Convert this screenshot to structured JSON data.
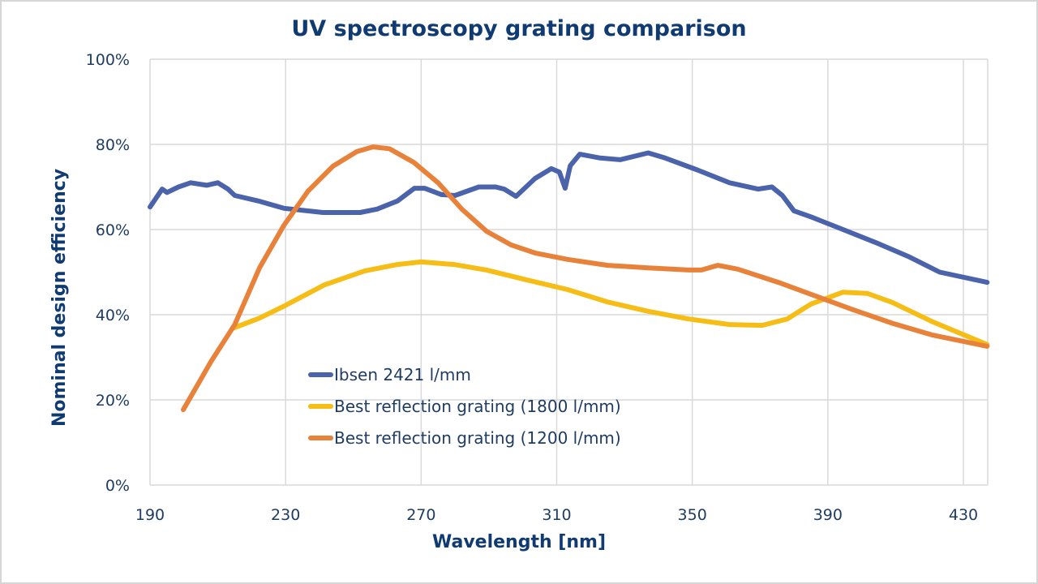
{
  "chart_data": {
    "type": "line",
    "title": "UV spectroscopy grating comparison",
    "xlabel": "Wavelength [nm]",
    "ylabel": "Nominal design efficiency",
    "xlim": [
      190,
      437
    ],
    "ylim": [
      0,
      100
    ],
    "x_ticks": [
      190,
      230,
      270,
      310,
      350,
      390,
      430
    ],
    "x_tick_labels": [
      "190",
      "230",
      "270",
      "310",
      "350",
      "390",
      "430"
    ],
    "y_ticks": [
      0,
      20,
      40,
      60,
      80,
      100
    ],
    "y_tick_labels": [
      "0%",
      "20%",
      "40%",
      "60%",
      "80%",
      "100%"
    ],
    "grid": true,
    "legend_position": "center-left inside plot",
    "series": [
      {
        "name": "Ibsen 2421 l/mm",
        "color": "#4a63ab",
        "points": [
          [
            190,
            65.3
          ],
          [
            193.6,
            69.5
          ],
          [
            195,
            68.7
          ],
          [
            198.4,
            70
          ],
          [
            202,
            71
          ],
          [
            206.7,
            70.4
          ],
          [
            210,
            71
          ],
          [
            213,
            69.5
          ],
          [
            215,
            68
          ],
          [
            222,
            66.7
          ],
          [
            229.5,
            65
          ],
          [
            241,
            64
          ],
          [
            252,
            64
          ],
          [
            257,
            64.8
          ],
          [
            263,
            66.7
          ],
          [
            268,
            69.7
          ],
          [
            271,
            69.7
          ],
          [
            276,
            68.2
          ],
          [
            280,
            68
          ],
          [
            287,
            70
          ],
          [
            292,
            70
          ],
          [
            294.5,
            69.5
          ],
          [
            298,
            67.8
          ],
          [
            303.6,
            72
          ],
          [
            308.4,
            74.3
          ],
          [
            310.8,
            73.5
          ],
          [
            312.5,
            69.7
          ],
          [
            314,
            75
          ],
          [
            316.8,
            77.7
          ],
          [
            322.8,
            76.8
          ],
          [
            328.7,
            76.4
          ],
          [
            337,
            78
          ],
          [
            342,
            76.8
          ],
          [
            351.5,
            74
          ],
          [
            361,
            71
          ],
          [
            369.4,
            69.5
          ],
          [
            373.5,
            70
          ],
          [
            376.6,
            68
          ],
          [
            380,
            64.4
          ],
          [
            385,
            63
          ],
          [
            394.5,
            60
          ],
          [
            404,
            57
          ],
          [
            413.7,
            53.7
          ],
          [
            423,
            50
          ],
          [
            437,
            47.6
          ]
        ]
      },
      {
        "name": "Best reflection grating (1800 l/mm)",
        "color": "#f6bd16",
        "points": [
          [
            214.4,
            36.8
          ],
          [
            222.3,
            39.2
          ],
          [
            229.5,
            42
          ],
          [
            241.4,
            47
          ],
          [
            253.4,
            50.3
          ],
          [
            263,
            51.8
          ],
          [
            270,
            52.4
          ],
          [
            279.7,
            51.8
          ],
          [
            289.3,
            50.5
          ],
          [
            301,
            48.2
          ],
          [
            313.2,
            45.9
          ],
          [
            325,
            43
          ],
          [
            337,
            40.8
          ],
          [
            349,
            39
          ],
          [
            361,
            37.7
          ],
          [
            370.6,
            37.5
          ],
          [
            378,
            39
          ],
          [
            385,
            42.5
          ],
          [
            394.5,
            45.3
          ],
          [
            401.7,
            45
          ],
          [
            409,
            42.9
          ],
          [
            421,
            38.3
          ],
          [
            437,
            33
          ]
        ]
      },
      {
        "name": "Best reflection grating (1200 l/mm)",
        "color": "#e8823a",
        "points": [
          [
            199.8,
            17.7
          ],
          [
            208,
            29
          ],
          [
            215,
            37.7
          ],
          [
            222.3,
            51
          ],
          [
            229.5,
            61
          ],
          [
            236.6,
            69
          ],
          [
            244,
            74.9
          ],
          [
            251,
            78.3
          ],
          [
            255.8,
            79.4
          ],
          [
            260.6,
            79
          ],
          [
            267.8,
            75.8
          ],
          [
            275,
            71
          ],
          [
            282,
            64.8
          ],
          [
            289.3,
            59.6
          ],
          [
            296.5,
            56.4
          ],
          [
            303.6,
            54.5
          ],
          [
            313.2,
            53
          ],
          [
            325,
            51.6
          ],
          [
            337,
            51
          ],
          [
            349,
            50.5
          ],
          [
            352.7,
            50.5
          ],
          [
            357.5,
            51.6
          ],
          [
            363.4,
            50.7
          ],
          [
            375.4,
            47.6
          ],
          [
            385,
            44.8
          ],
          [
            397,
            41.3
          ],
          [
            409,
            38
          ],
          [
            421,
            35.2
          ],
          [
            437,
            32.6
          ]
        ]
      }
    ]
  }
}
